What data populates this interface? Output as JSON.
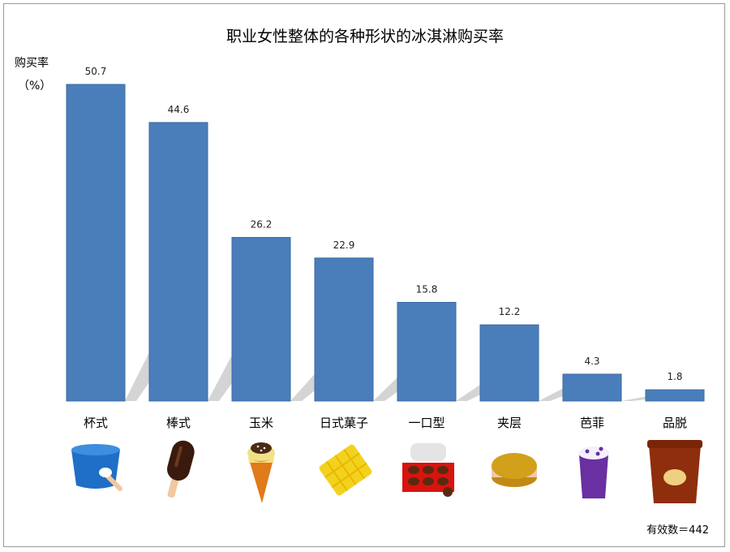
{
  "chart_data": {
    "type": "bar",
    "title": "职业女性整体的各种形状的冰淇淋购买率",
    "ylabel": "购买率",
    "yunit": "（%）",
    "categories": [
      "杯式",
      "棒式",
      "玉米",
      "日式菓子",
      "一口型",
      "夹层",
      "芭菲",
      "品脱"
    ],
    "values": [
      50.7,
      44.6,
      26.2,
      22.9,
      15.8,
      12.2,
      4.3,
      1.8
    ],
    "value_labels": [
      "50.7",
      "44.6",
      "26.2",
      "22.9",
      "15.8",
      "12.2",
      "4.3",
      "1.8"
    ],
    "ylim": [
      0,
      52
    ],
    "grid": false,
    "colors": {
      "bar": "#4a7ebb",
      "bar_edge": "#3b6aa3",
      "shadow": "#d4d4d4"
    },
    "icons": [
      "cup-ice-cream-icon",
      "stick-ice-cream-icon",
      "cone-ice-cream-icon",
      "wafer-sandwich-icon",
      "bite-size-box-icon",
      "ice-cream-sandwich-icon",
      "parfait-cup-icon",
      "pint-tub-icon"
    ]
  },
  "footnote": "有效数＝442"
}
